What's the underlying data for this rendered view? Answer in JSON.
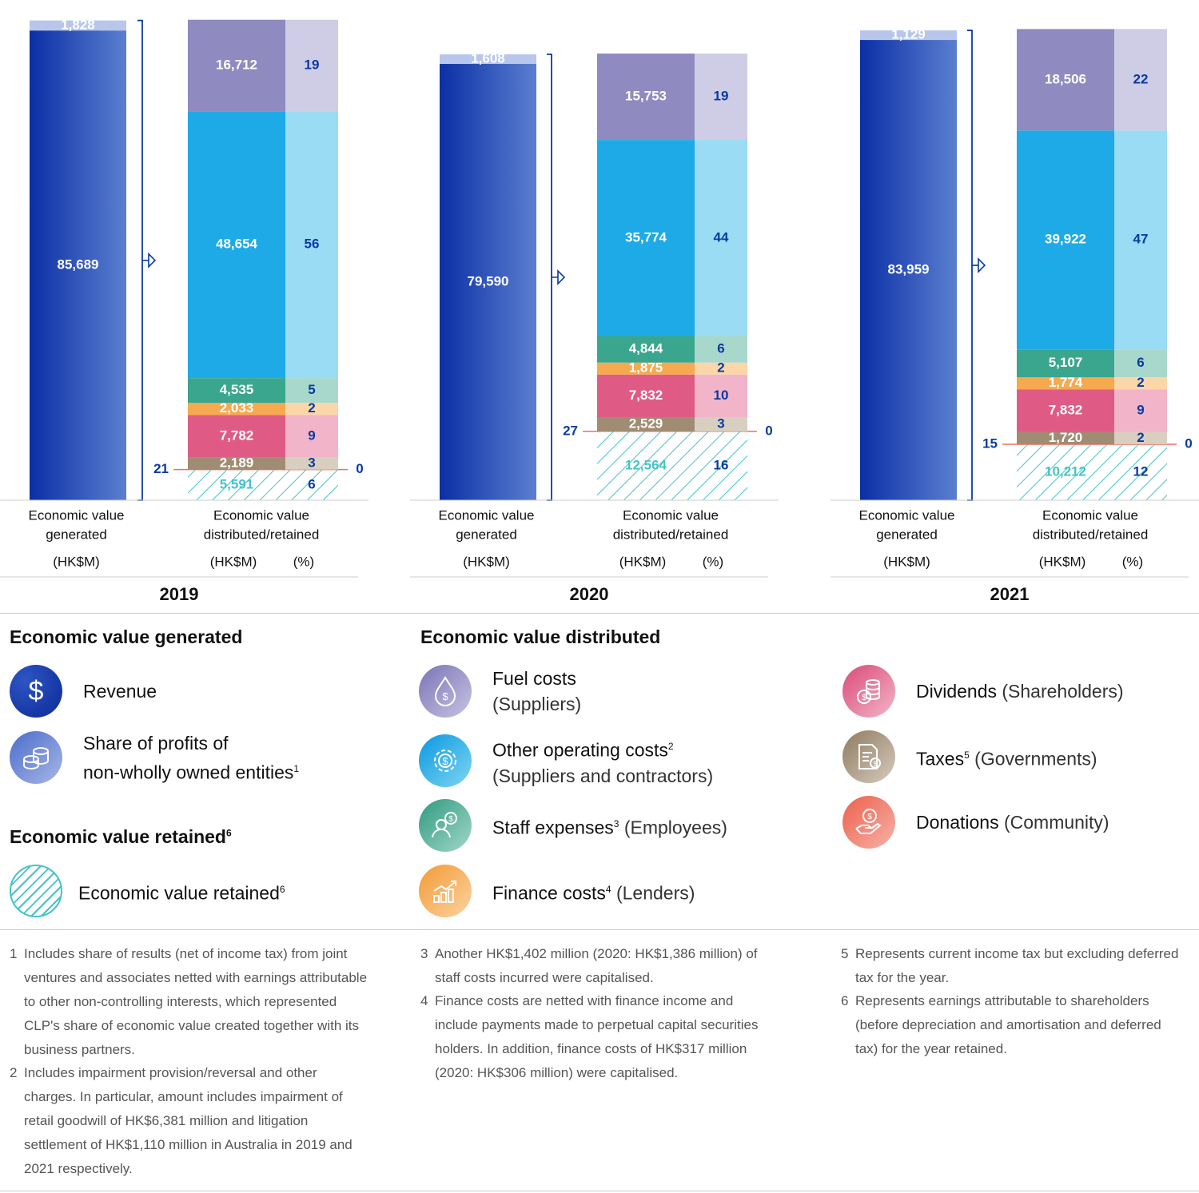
{
  "chart_data": {
    "type": "bar",
    "subtype": "stacked",
    "unit": "HK$M",
    "years": [
      {
        "year": "2019",
        "generated": {
          "revenue": 85689,
          "share_of_profits": 1828
        },
        "bracket_value": "21",
        "zero_pct": "0",
        "distributed": [
          {
            "key": "fuel",
            "value": "16,712",
            "pct": "19"
          },
          {
            "key": "other",
            "value": "48,654",
            "pct": "56"
          },
          {
            "key": "staff",
            "value": "4,535",
            "pct": "5"
          },
          {
            "key": "finance",
            "value": "2,033",
            "pct": "2"
          },
          {
            "key": "dividends",
            "value": "7,782",
            "pct": "9"
          },
          {
            "key": "taxes",
            "value": "2,189",
            "pct": "3"
          },
          {
            "key": "retained",
            "value": "5,591",
            "pct": "6"
          }
        ],
        "distributed_numeric": [
          16712,
          48654,
          4535,
          2033,
          7782,
          2189,
          21,
          5591
        ]
      },
      {
        "year": "2020",
        "generated": {
          "revenue": 79590,
          "share_of_profits": 1608
        },
        "bracket_value": "27",
        "zero_pct": "0",
        "distributed": [
          {
            "key": "fuel",
            "value": "15,753",
            "pct": "19"
          },
          {
            "key": "other",
            "value": "35,774",
            "pct": "44"
          },
          {
            "key": "staff",
            "value": "4,844",
            "pct": "6"
          },
          {
            "key": "finance",
            "value": "1,875",
            "pct": "2"
          },
          {
            "key": "dividends",
            "value": "7,832",
            "pct": "10"
          },
          {
            "key": "taxes",
            "value": "2,529",
            "pct": "3"
          },
          {
            "key": "retained",
            "value": "12,564",
            "pct": "16"
          }
        ],
        "distributed_numeric": [
          15753,
          35774,
          4844,
          1875,
          7832,
          2529,
          27,
          12564
        ]
      },
      {
        "year": "2021",
        "generated": {
          "revenue": 83959,
          "share_of_profits": 1129
        },
        "bracket_value": "15",
        "zero_pct": "0",
        "distributed": [
          {
            "key": "fuel",
            "value": "18,506",
            "pct": "22"
          },
          {
            "key": "other",
            "value": "39,922",
            "pct": "47"
          },
          {
            "key": "staff",
            "value": "5,107",
            "pct": "6"
          },
          {
            "key": "finance",
            "value": "1,774",
            "pct": "2"
          },
          {
            "key": "dividends",
            "value": "7,832",
            "pct": "9"
          },
          {
            "key": "taxes",
            "value": "1,720",
            "pct": "2"
          },
          {
            "key": "retained",
            "value": "10,212",
            "pct": "12"
          }
        ],
        "distributed_numeric": [
          18506,
          39922,
          5107,
          1774,
          7832,
          1720,
          15,
          10212
        ]
      }
    ],
    "labels": {
      "generated_line1": "Economic value",
      "generated_line2": "generated",
      "distributed_line1": "Economic value",
      "distributed_line2": "distributed/retained",
      "unit": "(HK$M)",
      "pct": "(%)"
    },
    "colors": {
      "revenue": "#1a3fb0",
      "share_of_profits": "#b7c6ea",
      "fuel": [
        "#8f8ac0",
        "#cfcce6"
      ],
      "other": [
        "#1eaae6",
        "#9adcf3"
      ],
      "staff": [
        "#3aa68e",
        "#a8d8cc"
      ],
      "finance": [
        "#f6a94e",
        "#fbd6a8"
      ],
      "dividends": [
        "#df5b86",
        "#f2b4c9"
      ],
      "taxes": [
        "#a08c72",
        "#d8cfc1"
      ],
      "donations": "#ef6f5f",
      "retained": "#45c3c8",
      "accent": "#0b3aa0"
    }
  },
  "legend": {
    "generated_title": "Economic value generated",
    "revenue": "Revenue",
    "share_line1": "Share of profits of",
    "share_line2": "non-wholly owned entities",
    "share_sup": "1",
    "retained_title": "Economic value retained",
    "retained_title_sup": "6",
    "retained_item": "Economic value retained",
    "retained_item_sup": "6",
    "distributed_title": "Economic value distributed",
    "fuel_main": "Fuel costs",
    "fuel_sub": "(Suppliers)",
    "other_main": "Other operating costs",
    "other_sup": "2",
    "other_sub": "(Suppliers and contractors)",
    "staff_main": "Staff expenses",
    "staff_sup": "3",
    "staff_sub": " (Employees)",
    "finance_main": "Finance costs",
    "finance_sup": "4",
    "finance_sub": " (Lenders)",
    "dividends_main": "Dividends",
    "dividends_sub": " (Shareholders)",
    "taxes_main": "Taxes",
    "taxes_sup": "5",
    "taxes_sub": " (Governments)",
    "donations_main": "Donations",
    "donations_sub": " (Community)"
  },
  "notes": [
    {
      "num": "1",
      "text": "Includes share of results (net of income tax) from joint ventures and associates netted with earnings attributable to other non-controlling interests, which represented CLP's share of economic value created together with its business partners."
    },
    {
      "num": "2",
      "text": "Includes impairment provision/reversal and other charges. In particular, amount includes impairment of retail goodwill of HK$6,381 million and litigation settlement of HK$1,110 million in Australia in 2019 and 2021 respectively."
    },
    {
      "num": "3",
      "text": "Another HK$1,402 million (2020: HK$1,386 million) of staff costs incurred were capitalised."
    },
    {
      "num": "4",
      "text": "Finance costs are netted with finance income and include payments made to perpetual capital securities holders. In addition, finance costs of HK$317 million (2020: HK$306 million) were capitalised."
    },
    {
      "num": "5",
      "text": "Represents current income tax but excluding deferred tax for the year."
    },
    {
      "num": "6",
      "text": "Represents earnings attributable to shareholders (before depreciation and amortisation and deferred tax) for the year retained."
    }
  ]
}
